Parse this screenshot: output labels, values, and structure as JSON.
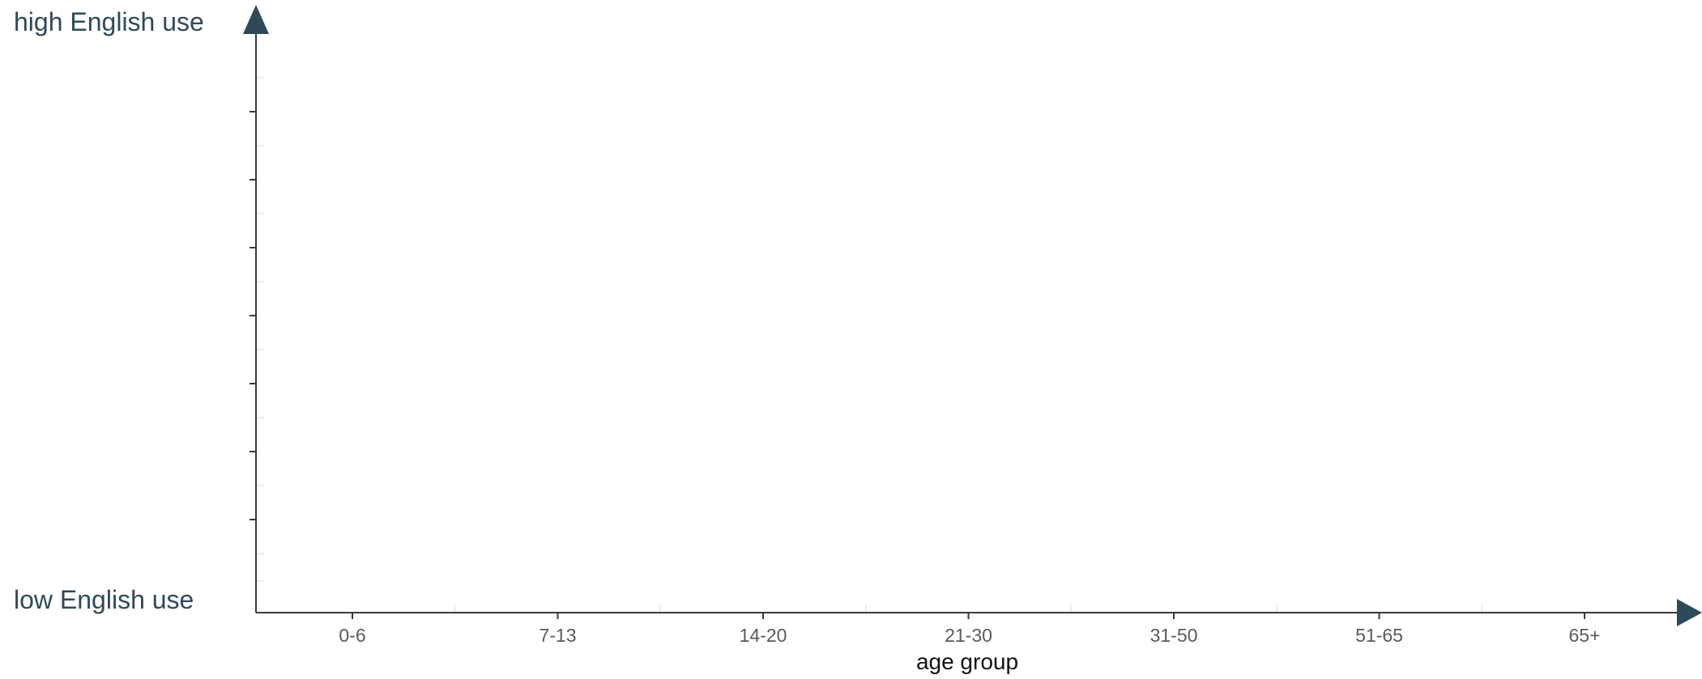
{
  "chart_data": {
    "type": "line",
    "title": "",
    "xlabel": "age group",
    "y_high_label": "high English use",
    "y_low_label": "low English use",
    "categories": [
      "0-6",
      "7-13",
      "14-20",
      "21-30",
      "31-50",
      "51-65",
      "65+"
    ],
    "series": [],
    "grid": false,
    "arrow_color": "#2e4a5a"
  }
}
